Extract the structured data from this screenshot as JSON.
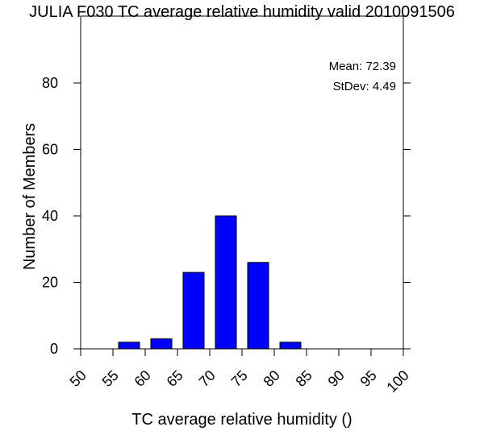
{
  "chart_data": {
    "type": "bar",
    "title": "JULIA F030 TC average relative humidity valid 2010091506",
    "xlabel": "TC average relative humidity ()",
    "ylabel": "Number of Members",
    "xlim": [
      50,
      100
    ],
    "ylim": [
      0,
      95
    ],
    "x_ticks": [
      50,
      55,
      60,
      65,
      70,
      75,
      80,
      85,
      90,
      95,
      100
    ],
    "y_ticks": [
      0,
      20,
      40,
      60,
      80
    ],
    "bin_width": 5,
    "bar_color": "#0000ff",
    "bars": [
      {
        "bin_start": 55,
        "bin_end": 60,
        "value": 2
      },
      {
        "bin_start": 60,
        "bin_end": 65,
        "value": 3
      },
      {
        "bin_start": 65,
        "bin_end": 70,
        "value": 23
      },
      {
        "bin_start": 70,
        "bin_end": 75,
        "value": 40
      },
      {
        "bin_start": 75,
        "bin_end": 80,
        "value": 26
      },
      {
        "bin_start": 80,
        "bin_end": 85,
        "value": 2
      }
    ],
    "annotations": {
      "mean_text": "Mean: 72.39",
      "stdev_text": "StDev: 4.49"
    },
    "grid": false
  }
}
